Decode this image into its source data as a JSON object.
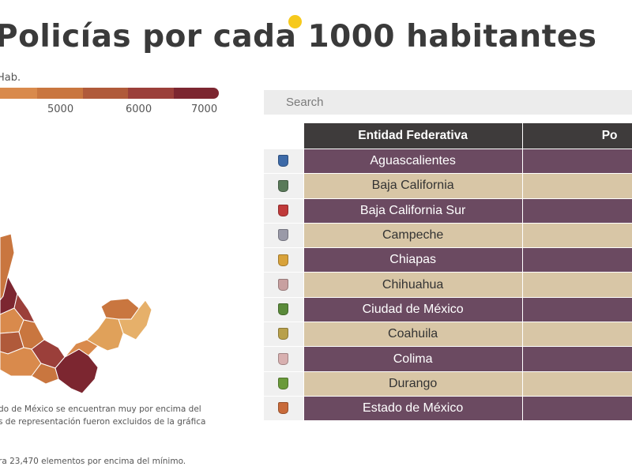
{
  "header": {
    "title": "Policías por cada 1000 habitantes",
    "dot_color": "#f6c91c"
  },
  "legend": {
    "caption": "Hab.",
    "ticks": [
      "5000",
      "6000",
      "7000"
    ],
    "colors": [
      "#d98a4c",
      "#c9763f",
      "#b05a3a",
      "#9b3f3a",
      "#7c2630"
    ]
  },
  "notes": {
    "line1": "do de México se encuentran muy por encima del",
    "line2": "s de representación fueron excluidos de la gráfica",
    "line3": "ra 23,470 elementos por encima del mínimo."
  },
  "search": {
    "placeholder": "Search"
  },
  "table": {
    "headers": [
      "Entidad Federativa",
      "Po"
    ],
    "rows": [
      {
        "name": "Aguascalientes",
        "icon": "aguascalientes-shield-icon",
        "icon_color": "#3d6aa8"
      },
      {
        "name": "Baja California",
        "icon": "baja-california-shield-icon",
        "icon_color": "#5a7a5a"
      },
      {
        "name": "Baja California Sur",
        "icon": "baja-california-sur-shield-icon",
        "icon_color": "#c03a3a"
      },
      {
        "name": "Campeche",
        "icon": "campeche-shield-icon",
        "icon_color": "#9a9aa8"
      },
      {
        "name": "Chiapas",
        "icon": "chiapas-shield-icon",
        "icon_color": "#d8a23a"
      },
      {
        "name": "Chihuahua",
        "icon": "chihuahua-shield-icon",
        "icon_color": "#c8a0a0"
      },
      {
        "name": "Ciudad de México",
        "icon": "ciudad-de-mexico-shield-icon",
        "icon_color": "#5a8a3a"
      },
      {
        "name": "Coahuila",
        "icon": "coahuila-shield-icon",
        "icon_color": "#b8a04a"
      },
      {
        "name": "Colima",
        "icon": "colima-shield-icon",
        "icon_color": "#d8b0b0"
      },
      {
        "name": "Durango",
        "icon": "durango-shield-icon",
        "icon_color": "#6a9a3a"
      },
      {
        "name": "Estado de México",
        "icon": "estado-de-mexico-shield-icon",
        "icon_color": "#c86a3a"
      }
    ],
    "row_colors": {
      "odd": "#6b4a61",
      "even": "#d8c6a6"
    },
    "header_color": "#3e3b3b"
  }
}
